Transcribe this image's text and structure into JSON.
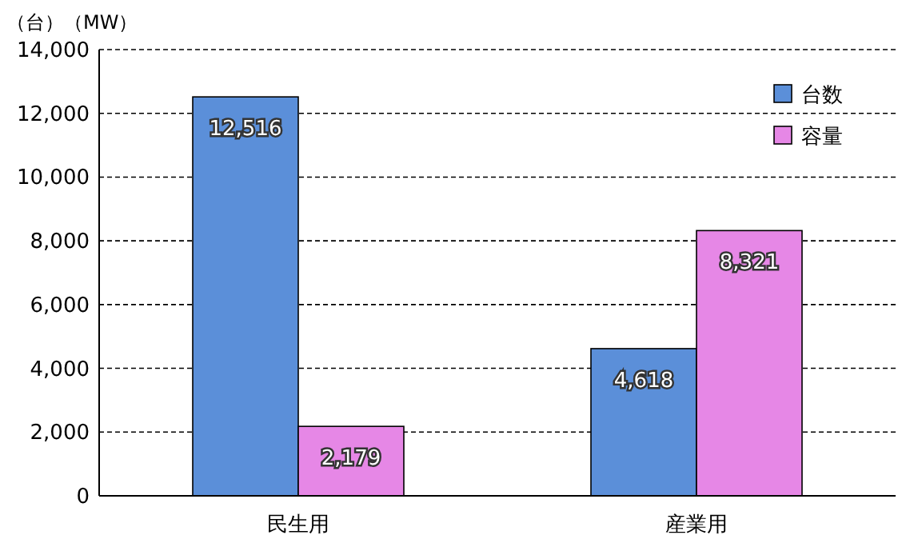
{
  "chart_data": {
    "type": "bar",
    "ylabel": "（台）（MW）",
    "categories": [
      "民生用",
      "産業用"
    ],
    "series": [
      {
        "name": "台数",
        "color": "#5b8fd9",
        "values": [
          12516,
          4618
        ],
        "value_labels": [
          "12,516",
          "4,618"
        ]
      },
      {
        "name": "容量",
        "color": "#e687e6",
        "values": [
          2179,
          8321
        ],
        "value_labels": [
          "2,179",
          "8,321"
        ]
      }
    ],
    "ylim": [
      0,
      14000
    ],
    "yticks": [
      0,
      {
        "value": 2000,
        "label": "2,000"
      },
      {
        "value": 4000,
        "label": "4,000"
      },
      {
        "value": 6000,
        "label": "6,000"
      },
      {
        "value": 8000,
        "label": "8,000"
      },
      {
        "value": 10000,
        "label": "10,000"
      },
      {
        "value": 12000,
        "label": "12,000"
      },
      {
        "value": 14000,
        "label": "14,000"
      }
    ],
    "grid": "y",
    "legend": "top right"
  }
}
